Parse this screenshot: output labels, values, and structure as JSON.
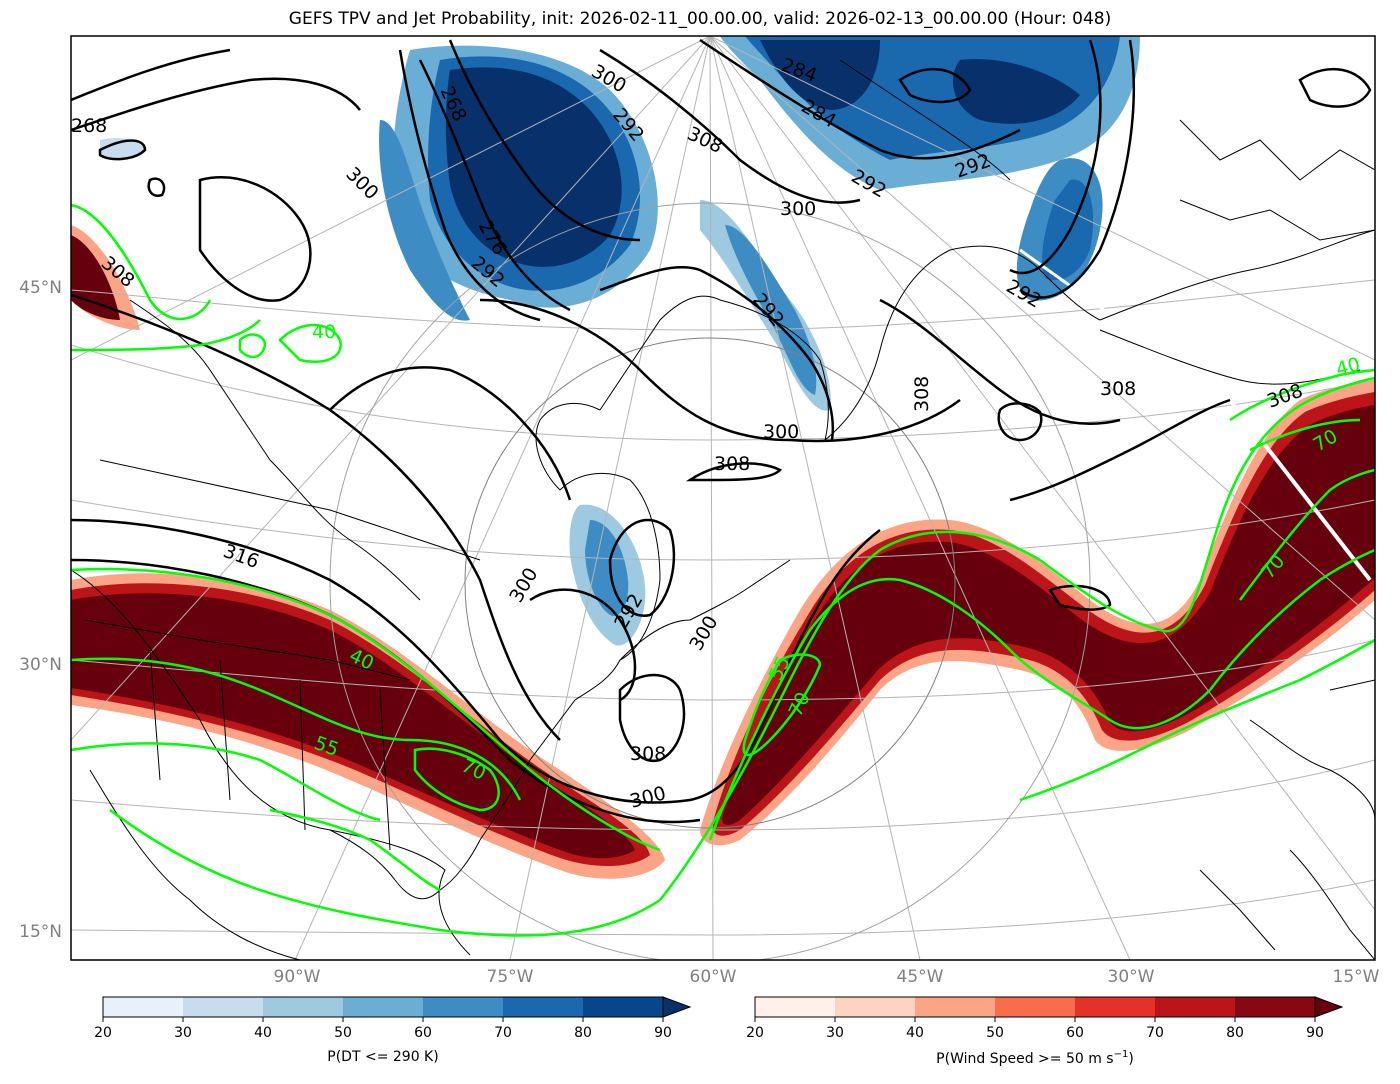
{
  "title": "GEFS TPV and Jet Probability, init: 2026-02-11_00.00.00, valid: 2026-02-13_00.00.00 (Hour: 048)",
  "lat_labels": [
    "45°N",
    "30°N",
    "15°N"
  ],
  "lon_labels": [
    "90°W",
    "75°W",
    "60°W",
    "45°W",
    "30°W",
    "15°W"
  ],
  "colorbars": {
    "tpv": {
      "label": "P(DT <= 290 K)",
      "ticks": [
        "20",
        "30",
        "40",
        "50",
        "60",
        "70",
        "80",
        "90"
      ],
      "colors": [
        "#e8f1fa",
        "#c7dcef",
        "#9dc9e1",
        "#6aaed6",
        "#3d8dc4",
        "#1a68ad",
        "#08468b"
      ],
      "extend_color": "#08306b"
    },
    "jet": {
      "label": "P(Wind Speed >= 50 m s",
      "label_sup": "−1",
      "label_end": ")",
      "ticks": [
        "20",
        "30",
        "40",
        "50",
        "60",
        "70",
        "80",
        "90"
      ],
      "colors": [
        "#fff0e9",
        "#fdd3c1",
        "#fca486",
        "#f96d4d",
        "#e53228",
        "#bb1419",
        "#870811"
      ],
      "extend_color": "#67000d"
    }
  },
  "theta_contour_labels": [
    "268",
    "276",
    "284",
    "292",
    "300",
    "308",
    "316"
  ],
  "jet_contour_labels": [
    "40",
    "55",
    "70"
  ],
  "colors": {
    "jet_contour": "#00ff00",
    "theta_contour": "#000000",
    "grid": "#b4b4b4",
    "coast": "#000000"
  }
}
